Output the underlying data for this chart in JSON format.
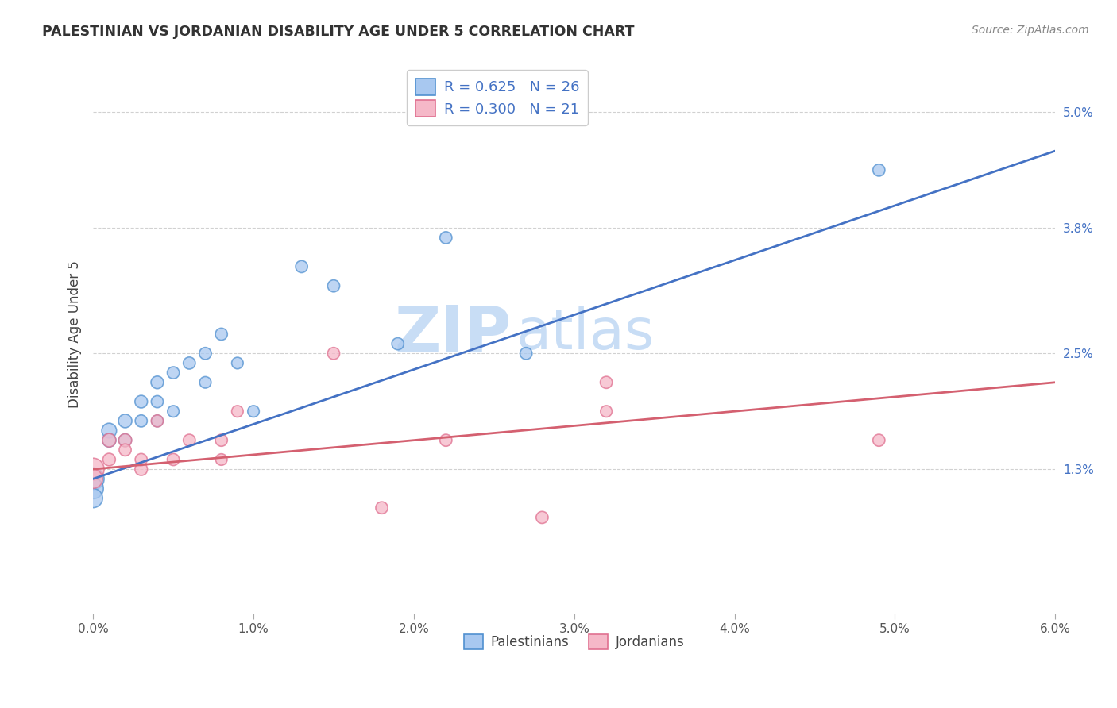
{
  "title": "PALESTINIAN VS JORDANIAN DISABILITY AGE UNDER 5 CORRELATION CHART",
  "source": "Source: ZipAtlas.com",
  "ylabel": "Disability Age Under 5",
  "xlim": [
    0.0,
    0.06
  ],
  "ylim": [
    -0.002,
    0.056
  ],
  "xticks": [
    0.0,
    0.01,
    0.02,
    0.03,
    0.04,
    0.05,
    0.06
  ],
  "xticklabels": [
    "0.0%",
    "1.0%",
    "2.0%",
    "3.0%",
    "4.0%",
    "5.0%",
    "6.0%"
  ],
  "ytick_positions": [
    0.013,
    0.025,
    0.038,
    0.05
  ],
  "ytick_labels": [
    "1.3%",
    "2.5%",
    "3.8%",
    "5.0%"
  ],
  "watermark_zip": "ZIP",
  "watermark_atlas": "atlas",
  "blue_R": 0.625,
  "blue_N": 26,
  "pink_R": 0.3,
  "pink_N": 21,
  "blue_fill": "#a8c8f0",
  "pink_fill": "#f5b8c8",
  "blue_edge": "#5090d0",
  "pink_edge": "#e07090",
  "blue_line": "#4472c4",
  "pink_line": "#d4607080",
  "legend_label_blue": "Palestinians",
  "legend_label_pink": "Jordanians",
  "background_color": "#ffffff",
  "grid_color": "#cccccc",
  "title_color": "#333333",
  "source_color": "#888888",
  "tick_color": "#4472c4",
  "palestinians_x": [
    0.0,
    0.0,
    0.0,
    0.001,
    0.001,
    0.002,
    0.002,
    0.003,
    0.003,
    0.004,
    0.004,
    0.004,
    0.005,
    0.005,
    0.006,
    0.007,
    0.007,
    0.008,
    0.009,
    0.01,
    0.013,
    0.015,
    0.019,
    0.022,
    0.027,
    0.049
  ],
  "palestinians_y": [
    0.012,
    0.011,
    0.01,
    0.017,
    0.016,
    0.018,
    0.016,
    0.02,
    0.018,
    0.022,
    0.02,
    0.018,
    0.023,
    0.019,
    0.024,
    0.025,
    0.022,
    0.027,
    0.024,
    0.019,
    0.034,
    0.032,
    0.026,
    0.037,
    0.025,
    0.044
  ],
  "palestinians_size": [
    400,
    350,
    300,
    180,
    150,
    150,
    130,
    130,
    120,
    130,
    120,
    110,
    120,
    110,
    120,
    120,
    110,
    120,
    110,
    110,
    120,
    120,
    120,
    120,
    120,
    120
  ],
  "jordanians_x": [
    0.0,
    0.0,
    0.001,
    0.001,
    0.002,
    0.002,
    0.003,
    0.003,
    0.004,
    0.005,
    0.006,
    0.008,
    0.008,
    0.009,
    0.015,
    0.018,
    0.022,
    0.028,
    0.032,
    0.032,
    0.049
  ],
  "jordanians_y": [
    0.013,
    0.012,
    0.016,
    0.014,
    0.016,
    0.015,
    0.013,
    0.014,
    0.018,
    0.014,
    0.016,
    0.016,
    0.014,
    0.019,
    0.025,
    0.009,
    0.016,
    0.008,
    0.022,
    0.019,
    0.016
  ],
  "jordanians_size": [
    400,
    300,
    150,
    130,
    140,
    120,
    130,
    120,
    120,
    120,
    120,
    120,
    110,
    110,
    120,
    120,
    120,
    120,
    120,
    110,
    120
  ],
  "blue_line_x0": 0.0,
  "blue_line_y0": 0.012,
  "blue_line_x1": 0.06,
  "blue_line_y1": 0.046,
  "pink_line_x0": 0.0,
  "pink_line_y0": 0.013,
  "pink_line_x1": 0.06,
  "pink_line_y1": 0.022
}
